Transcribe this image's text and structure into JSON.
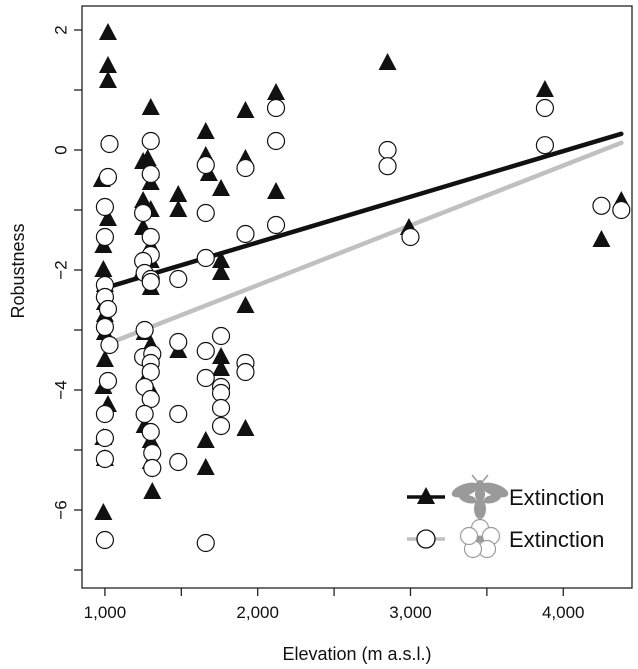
{
  "chart_data": {
    "type": "scatter",
    "title": "",
    "xlabel": "Elevation (m a.s.l.)",
    "ylabel": "Robustness",
    "xlim": [
      850,
      4450
    ],
    "ylim": [
      -7.3,
      2.4
    ],
    "x_ticks": [
      {
        "value": 1000,
        "label": "1,000"
      },
      {
        "value": 1500,
        "label": ""
      },
      {
        "value": 2000,
        "label": "2,000"
      },
      {
        "value": 2500,
        "label": ""
      },
      {
        "value": 3000,
        "label": "3,000"
      },
      {
        "value": 3500,
        "label": ""
      },
      {
        "value": 4000,
        "label": "4,000"
      }
    ],
    "y_ticks": [
      {
        "value": 2,
        "label": "2"
      },
      {
        "value": 1,
        "label": ""
      },
      {
        "value": 0,
        "label": "0"
      },
      {
        "value": -1,
        "label": ""
      },
      {
        "value": -2,
        "label": "−2"
      },
      {
        "value": -3,
        "label": ""
      },
      {
        "value": -4,
        "label": "−4"
      },
      {
        "value": -5,
        "label": ""
      },
      {
        "value": -6,
        "label": "−6"
      },
      {
        "value": -7,
        "label": ""
      }
    ],
    "grid": false,
    "legend_position": "bottom-right",
    "series": [
      {
        "name": "Extinction",
        "legend_icon": "bee-icon",
        "marker": "filled-triangle",
        "color": "#111111",
        "points": [
          [
            1020,
            1.95
          ],
          [
            1020,
            1.4
          ],
          [
            1020,
            1.15
          ],
          [
            980,
            -0.5
          ],
          [
            1020,
            -1.15
          ],
          [
            990,
            -1.6
          ],
          [
            990,
            -2.0
          ],
          [
            1000,
            -2.25
          ],
          [
            1000,
            -2.55
          ],
          [
            1000,
            -2.75
          ],
          [
            1000,
            -3.05
          ],
          [
            1000,
            -3.5
          ],
          [
            990,
            -3.95
          ],
          [
            1020,
            -4.25
          ],
          [
            990,
            -4.8
          ],
          [
            1000,
            -5.15
          ],
          [
            990,
            -6.05
          ],
          [
            1250,
            -0.2
          ],
          [
            1280,
            -0.15
          ],
          [
            1300,
            -0.35
          ],
          [
            1300,
            -0.55
          ],
          [
            1250,
            -0.85
          ],
          [
            1300,
            -1.0
          ],
          [
            1250,
            -1.3
          ],
          [
            1300,
            -1.6
          ],
          [
            1300,
            -1.85
          ],
          [
            1250,
            -2.0
          ],
          [
            1300,
            -2.3
          ],
          [
            1260,
            -3.05
          ],
          [
            1300,
            -3.25
          ],
          [
            1260,
            -3.85
          ],
          [
            1300,
            -4.0
          ],
          [
            1260,
            -4.6
          ],
          [
            1300,
            -4.85
          ],
          [
            1300,
            -5.2
          ],
          [
            1310,
            -5.7
          ],
          [
            1300,
            0.7
          ],
          [
            1480,
            -0.75
          ],
          [
            1480,
            -1.0
          ],
          [
            1480,
            -3.35
          ],
          [
            1660,
            0.3
          ],
          [
            1660,
            -0.1
          ],
          [
            1680,
            -0.4
          ],
          [
            1760,
            -0.65
          ],
          [
            1760,
            -1.85
          ],
          [
            1760,
            -2.05
          ],
          [
            1760,
            -3.45
          ],
          [
            1760,
            -3.65
          ],
          [
            1660,
            -4.85
          ],
          [
            1660,
            -5.3
          ],
          [
            1920,
            0.65
          ],
          [
            1920,
            -0.15
          ],
          [
            1920,
            -2.6
          ],
          [
            1920,
            -4.65
          ],
          [
            2120,
            0.95
          ],
          [
            2120,
            -0.7
          ],
          [
            2850,
            1.45
          ],
          [
            2990,
            -1.3
          ],
          [
            3880,
            1.0
          ],
          [
            4250,
            -1.5
          ],
          [
            4380,
            -0.85
          ]
        ],
        "trend_line": {
          "x": [
            1000,
            4380
          ],
          "y": [
            -2.3,
            0.27
          ],
          "color": "#111111"
        }
      },
      {
        "name": "Extinction",
        "legend_icon": "flower-icon",
        "marker": "open-circle",
        "color": "#111111",
        "points": [
          [
            1030,
            0.1
          ],
          [
            1020,
            -0.45
          ],
          [
            1000,
            -0.95
          ],
          [
            1000,
            -1.45
          ],
          [
            1000,
            -2.25
          ],
          [
            1000,
            -2.45
          ],
          [
            1020,
            -2.65
          ],
          [
            1000,
            -2.95
          ],
          [
            1030,
            -3.25
          ],
          [
            1020,
            -3.85
          ],
          [
            1000,
            -4.4
          ],
          [
            1000,
            -4.8
          ],
          [
            1000,
            -5.15
          ],
          [
            1000,
            -6.5
          ],
          [
            1300,
            0.15
          ],
          [
            1300,
            -0.4
          ],
          [
            1250,
            -1.05
          ],
          [
            1300,
            -1.45
          ],
          [
            1300,
            -1.75
          ],
          [
            1250,
            -1.85
          ],
          [
            1260,
            -2.05
          ],
          [
            1300,
            -2.15
          ],
          [
            1300,
            -2.2
          ],
          [
            1260,
            -3.0
          ],
          [
            1250,
            -3.45
          ],
          [
            1310,
            -3.4
          ],
          [
            1300,
            -3.55
          ],
          [
            1300,
            -3.7
          ],
          [
            1260,
            -3.95
          ],
          [
            1300,
            -4.15
          ],
          [
            1260,
            -4.4
          ],
          [
            1300,
            -4.7
          ],
          [
            1310,
            -5.05
          ],
          [
            1310,
            -5.3
          ],
          [
            1480,
            -2.15
          ],
          [
            1480,
            -3.2
          ],
          [
            1480,
            -4.4
          ],
          [
            1480,
            -5.2
          ],
          [
            1660,
            -0.25
          ],
          [
            1660,
            -1.05
          ],
          [
            1660,
            -1.8
          ],
          [
            1660,
            -3.35
          ],
          [
            1660,
            -3.8
          ],
          [
            1760,
            -3.1
          ],
          [
            1760,
            -3.95
          ],
          [
            1760,
            -4.05
          ],
          [
            1760,
            -4.3
          ],
          [
            1760,
            -4.6
          ],
          [
            1660,
            -6.55
          ],
          [
            1920,
            -0.3
          ],
          [
            1920,
            -1.4
          ],
          [
            1920,
            -3.55
          ],
          [
            1920,
            -3.7
          ],
          [
            2120,
            0.7
          ],
          [
            2120,
            0.15
          ],
          [
            2120,
            -1.25
          ],
          [
            2850,
            0.0
          ],
          [
            2850,
            -0.27
          ],
          [
            3000,
            -1.45
          ],
          [
            3880,
            0.7
          ],
          [
            3880,
            0.08
          ],
          [
            4250,
            -0.93
          ],
          [
            4380,
            -1.0
          ]
        ],
        "trend_line": {
          "x": [
            1000,
            4380
          ],
          "y": [
            -3.25,
            0.12
          ],
          "color": "#c0c0c0"
        }
      }
    ]
  }
}
